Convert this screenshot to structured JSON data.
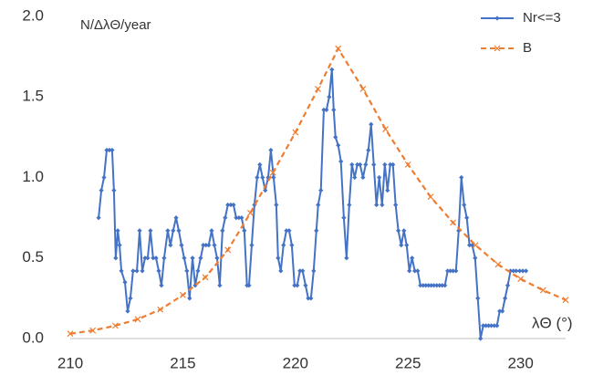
{
  "chart_data": {
    "type": "line",
    "ylabel": "N/ΔλΘ/year",
    "xlabel": "λΘ (°)",
    "xlim": [
      210,
      232
    ],
    "xticks": [
      210,
      215,
      220,
      225,
      230
    ],
    "ylim": [
      0,
      2
    ],
    "yticks": [
      {
        "value": 0,
        "label": "0.0"
      },
      {
        "value": 0.5,
        "label": "0.5"
      },
      {
        "value": 1,
        "label": "1.0"
      },
      {
        "value": 1.5,
        "label": "1.5"
      },
      {
        "value": 2,
        "label": "2.0"
      }
    ],
    "legend": "top-right",
    "series": [
      {
        "name": "Nr<=3",
        "color": "#4472c4",
        "marker": "diamond",
        "dash": false,
        "x": [
          211.26,
          211.38,
          211.5,
          211.62,
          211.74,
          211.86,
          211.94,
          212.02,
          212.11,
          212.19,
          212.27,
          212.43,
          212.55,
          212.67,
          212.79,
          212.96,
          213.08,
          213.2,
          213.32,
          213.44,
          213.56,
          213.68,
          213.81,
          213.93,
          214.05,
          214.17,
          214.33,
          214.45,
          214.57,
          214.7,
          214.82,
          214.94,
          215.06,
          215.18,
          215.3,
          215.43,
          215.55,
          215.67,
          215.79,
          215.91,
          216.03,
          216.15,
          216.28,
          216.4,
          216.52,
          216.64,
          216.76,
          216.88,
          217.0,
          217.13,
          217.25,
          217.37,
          217.49,
          217.61,
          217.73,
          217.85,
          217.94,
          218.06,
          218.18,
          218.3,
          218.42,
          218.54,
          218.66,
          218.79,
          218.91,
          219.03,
          219.15,
          219.23,
          219.35,
          219.47,
          219.6,
          219.72,
          219.84,
          219.96,
          220.08,
          220.2,
          220.32,
          220.45,
          220.57,
          220.69,
          220.81,
          220.93,
          221.01,
          221.13,
          221.26,
          221.38,
          221.5,
          221.62,
          221.7,
          221.78,
          221.9,
          222.02,
          222.15,
          222.27,
          222.39,
          222.51,
          222.63,
          222.75,
          222.87,
          223.0,
          223.12,
          223.24,
          223.36,
          223.48,
          223.6,
          223.72,
          223.85,
          223.97,
          224.09,
          224.21,
          224.33,
          224.45,
          224.57,
          224.7,
          224.82,
          224.94,
          225.06,
          225.18,
          225.3,
          225.43,
          225.55,
          225.67,
          225.79,
          225.91,
          226.03,
          226.15,
          226.28,
          226.4,
          226.52,
          226.64,
          226.76,
          226.88,
          227.0,
          227.13,
          227.25,
          227.37,
          227.49,
          227.61,
          227.73,
          227.85,
          227.98,
          228.1,
          228.22,
          228.34,
          228.46,
          228.58,
          228.7,
          228.83,
          228.95,
          229.07,
          229.19,
          229.31,
          229.43,
          229.55,
          229.68,
          229.8,
          229.96,
          230.1,
          230.24
        ],
        "values": [
          0.75,
          0.92,
          1.0,
          1.17,
          1.17,
          1.17,
          0.92,
          0.5,
          0.67,
          0.58,
          0.42,
          0.35,
          0.17,
          0.25,
          0.42,
          0.42,
          0.67,
          0.42,
          0.5,
          0.5,
          0.67,
          0.5,
          0.5,
          0.42,
          0.33,
          0.5,
          0.67,
          0.58,
          0.67,
          0.75,
          0.67,
          0.58,
          0.5,
          0.42,
          0.25,
          0.5,
          0.33,
          0.42,
          0.5,
          0.58,
          0.58,
          0.58,
          0.67,
          0.58,
          0.5,
          0.33,
          0.67,
          0.75,
          0.83,
          0.83,
          0.83,
          0.75,
          0.75,
          0.75,
          0.67,
          0.33,
          0.33,
          0.58,
          0.83,
          1.0,
          1.08,
          1.0,
          0.92,
          1.0,
          1.17,
          1.0,
          0.83,
          0.5,
          0.42,
          0.58,
          0.67,
          0.67,
          0.58,
          0.33,
          0.33,
          0.42,
          0.42,
          0.33,
          0.25,
          0.25,
          0.42,
          0.67,
          0.83,
          0.92,
          1.42,
          1.42,
          1.5,
          1.67,
          1.42,
          1.25,
          1.2,
          1.1,
          0.75,
          0.5,
          0.83,
          1.08,
          1.0,
          1.08,
          1.08,
          1.0,
          1.08,
          1.17,
          1.33,
          1.08,
          0.83,
          1.0,
          0.83,
          1.08,
          0.92,
          1.08,
          1.08,
          0.83,
          0.67,
          0.58,
          0.67,
          0.58,
          0.42,
          0.5,
          0.42,
          0.42,
          0.33,
          0.33,
          0.33,
          0.33,
          0.33,
          0.33,
          0.33,
          0.33,
          0.33,
          0.33,
          0.42,
          0.42,
          0.42,
          0.42,
          0.67,
          1.0,
          0.83,
          0.75,
          0.58,
          0.58,
          0.5,
          0.25,
          0.0,
          0.08,
          0.08,
          0.08,
          0.08,
          0.08,
          0.08,
          0.17,
          0.17,
          0.25,
          0.33,
          0.42,
          0.42,
          0.42,
          0.42,
          0.42,
          0.42
        ]
      },
      {
        "name": "B",
        "color": "#ed7d31",
        "marker": "x",
        "dash": true,
        "x": [
          210,
          211,
          212,
          213,
          214,
          215,
          216,
          217,
          218,
          219,
          220,
          221,
          221.9,
          223,
          224,
          225,
          226,
          227,
          228,
          229,
          230,
          231,
          232
        ],
        "values": [
          0.03,
          0.05,
          0.08,
          0.12,
          0.18,
          0.27,
          0.38,
          0.55,
          0.78,
          1.03,
          1.28,
          1.55,
          1.8,
          1.55,
          1.3,
          1.08,
          0.88,
          0.72,
          0.58,
          0.46,
          0.37,
          0.3,
          0.24
        ]
      }
    ]
  }
}
